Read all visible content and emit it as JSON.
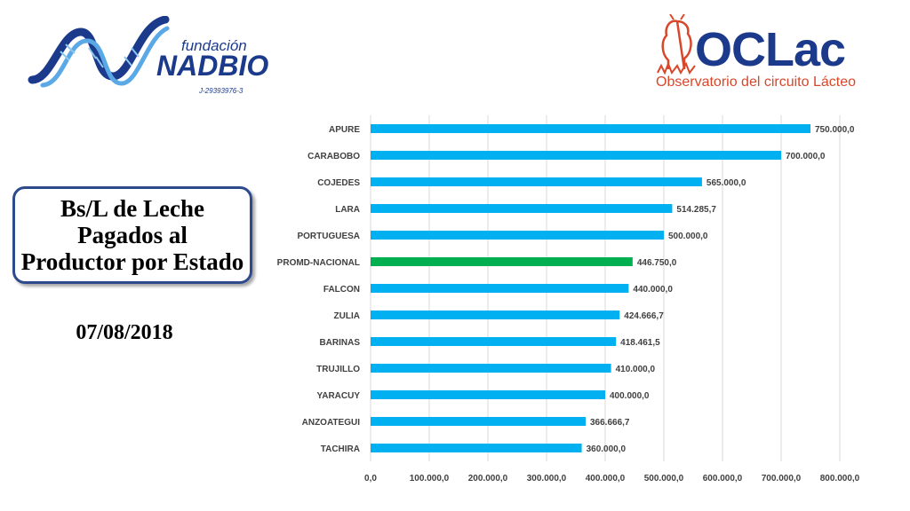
{
  "logos": {
    "left_small": "fundación",
    "left_big": "NADBIO",
    "left_id": "J-29393976-3",
    "right_big": "OCLac",
    "right_sub": "Observatorio del circuito Lácteo"
  },
  "title_box": {
    "text": "Bs/L de Leche\nPagados al\nProductor por Estado"
  },
  "date": "07/08/2018",
  "colors": {
    "bar": "#00b0f0",
    "highlight": "#00b050",
    "grid": "#d9d9d9",
    "label": "#404040"
  },
  "chart_data": {
    "type": "bar",
    "orientation": "horizontal",
    "categories": [
      "APURE",
      "CARABOBO",
      "COJEDES",
      "LARA",
      "PORTUGUESA",
      "PROMD-NACIONAL",
      "FALCON",
      "ZULIA",
      "BARINAS",
      "TRUJILLO",
      "YARACUY",
      "ANZOATEGUI",
      "TACHIRA"
    ],
    "values": [
      750000.0,
      700000.0,
      565000.0,
      514285.7,
      500000.0,
      446750.0,
      440000.0,
      424666.7,
      418461.5,
      410000.0,
      400000.0,
      366666.7,
      360000.0
    ],
    "value_labels": [
      "750.000,0",
      "700.000,0",
      "565.000,0",
      "514.285,7",
      "500.000,0",
      "446.750,0",
      "440.000,0",
      "424.666,7",
      "418.461,5",
      "410.000,0",
      "400.000,0",
      "366.666,7",
      "360.000,0"
    ],
    "highlight_category": "PROMD-NACIONAL",
    "xlim": [
      0,
      800000
    ],
    "xticks": [
      0,
      100000,
      200000,
      300000,
      400000,
      500000,
      600000,
      700000,
      800000
    ],
    "xtick_labels": [
      "0,0",
      "100.000,0",
      "200.000,0",
      "300.000,0",
      "400.000,0",
      "500.000,0",
      "600.000,0",
      "700.000,0",
      "800.000,0"
    ],
    "grid": "vertical",
    "legend": "none",
    "title": "",
    "xlabel": "",
    "ylabel": ""
  }
}
